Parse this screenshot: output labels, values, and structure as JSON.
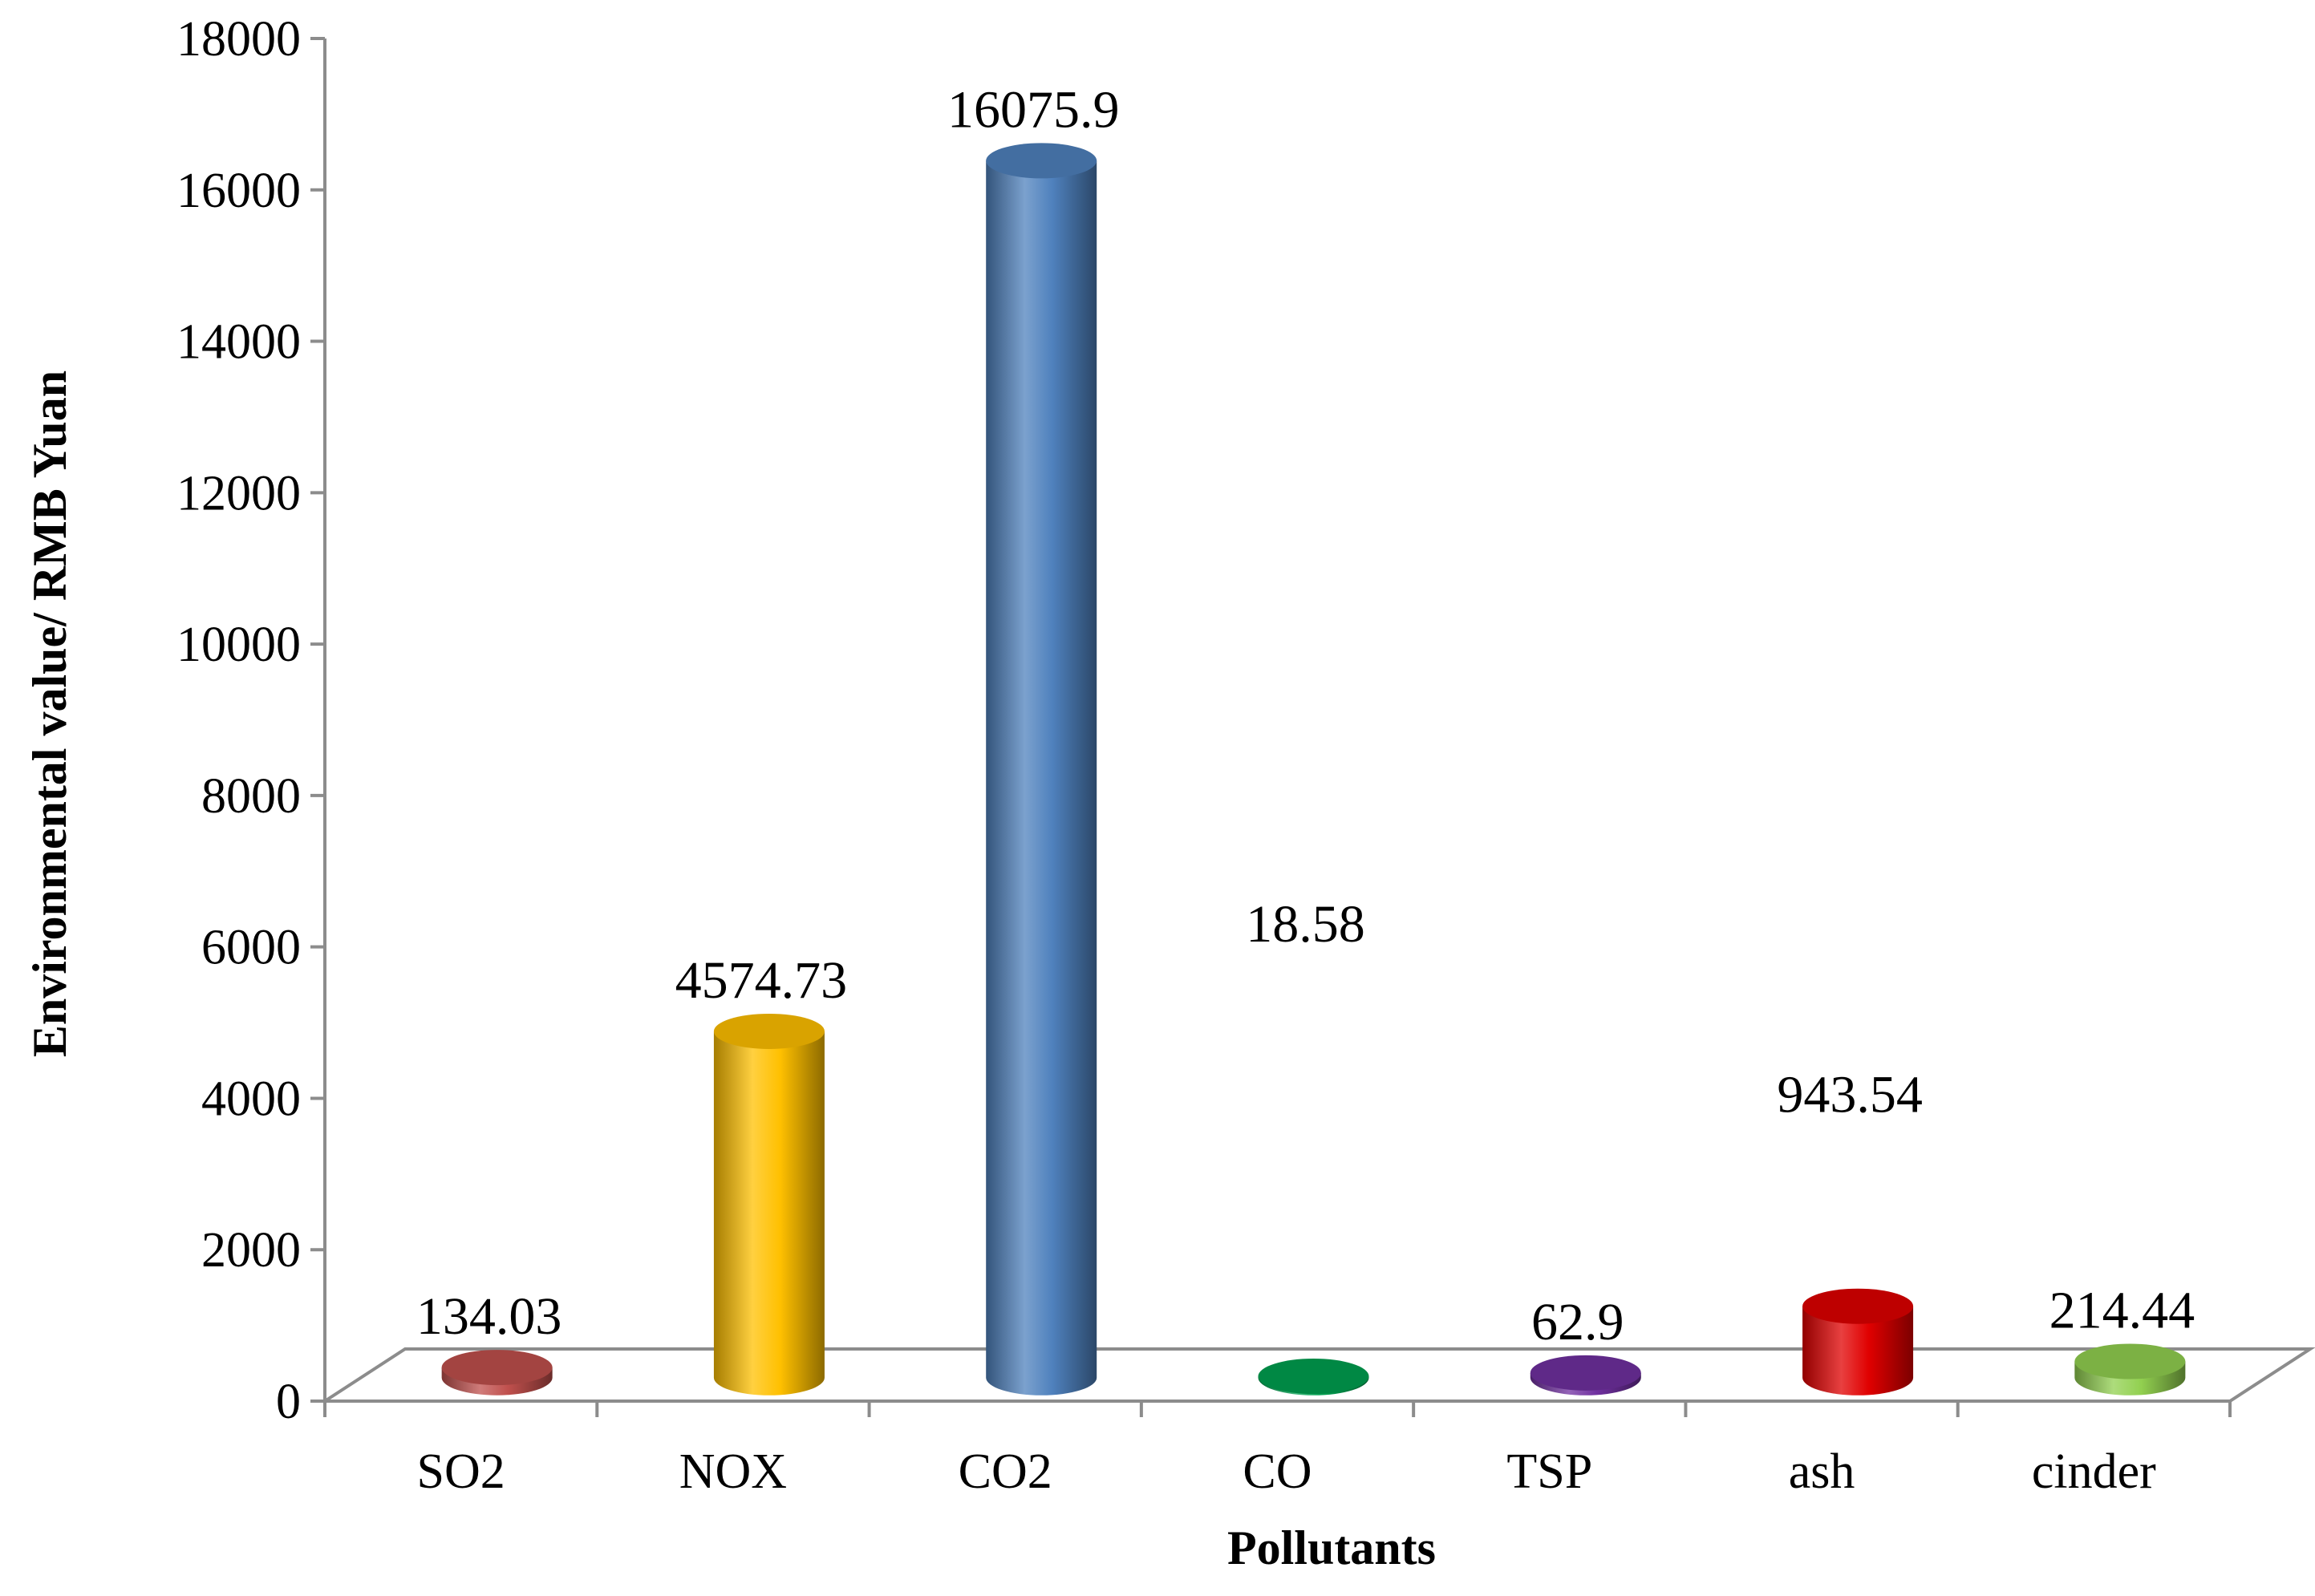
{
  "chart_data": {
    "type": "bar",
    "title": "",
    "xlabel": "Pollutants",
    "ylabel": "Environmental value/ RMB Yuan",
    "categories": [
      "SO2",
      "NOX",
      "CO2",
      "CO",
      "TSP",
      "ash",
      "cinder"
    ],
    "values": [
      134.03,
      4574.73,
      16075.9,
      18.58,
      62.9,
      943.54,
      214.44
    ],
    "data_labels": [
      "134.03",
      "4574.73",
      "16075.9",
      "18.58",
      "62.9",
      "943.54",
      "214.44"
    ],
    "ylim": [
      0,
      18000
    ],
    "yticks": [
      "0",
      "2000",
      "4000",
      "6000",
      "8000",
      "10000",
      "12000",
      "14000",
      "16000",
      "18000"
    ],
    "grid": false,
    "legend": "none",
    "bar_style": "3d-cylinder",
    "colors": [
      "#C0504D",
      "#FFC000",
      "#4F81BD",
      "#00A050",
      "#7030A0",
      "#E00000",
      "#92D050"
    ]
  }
}
